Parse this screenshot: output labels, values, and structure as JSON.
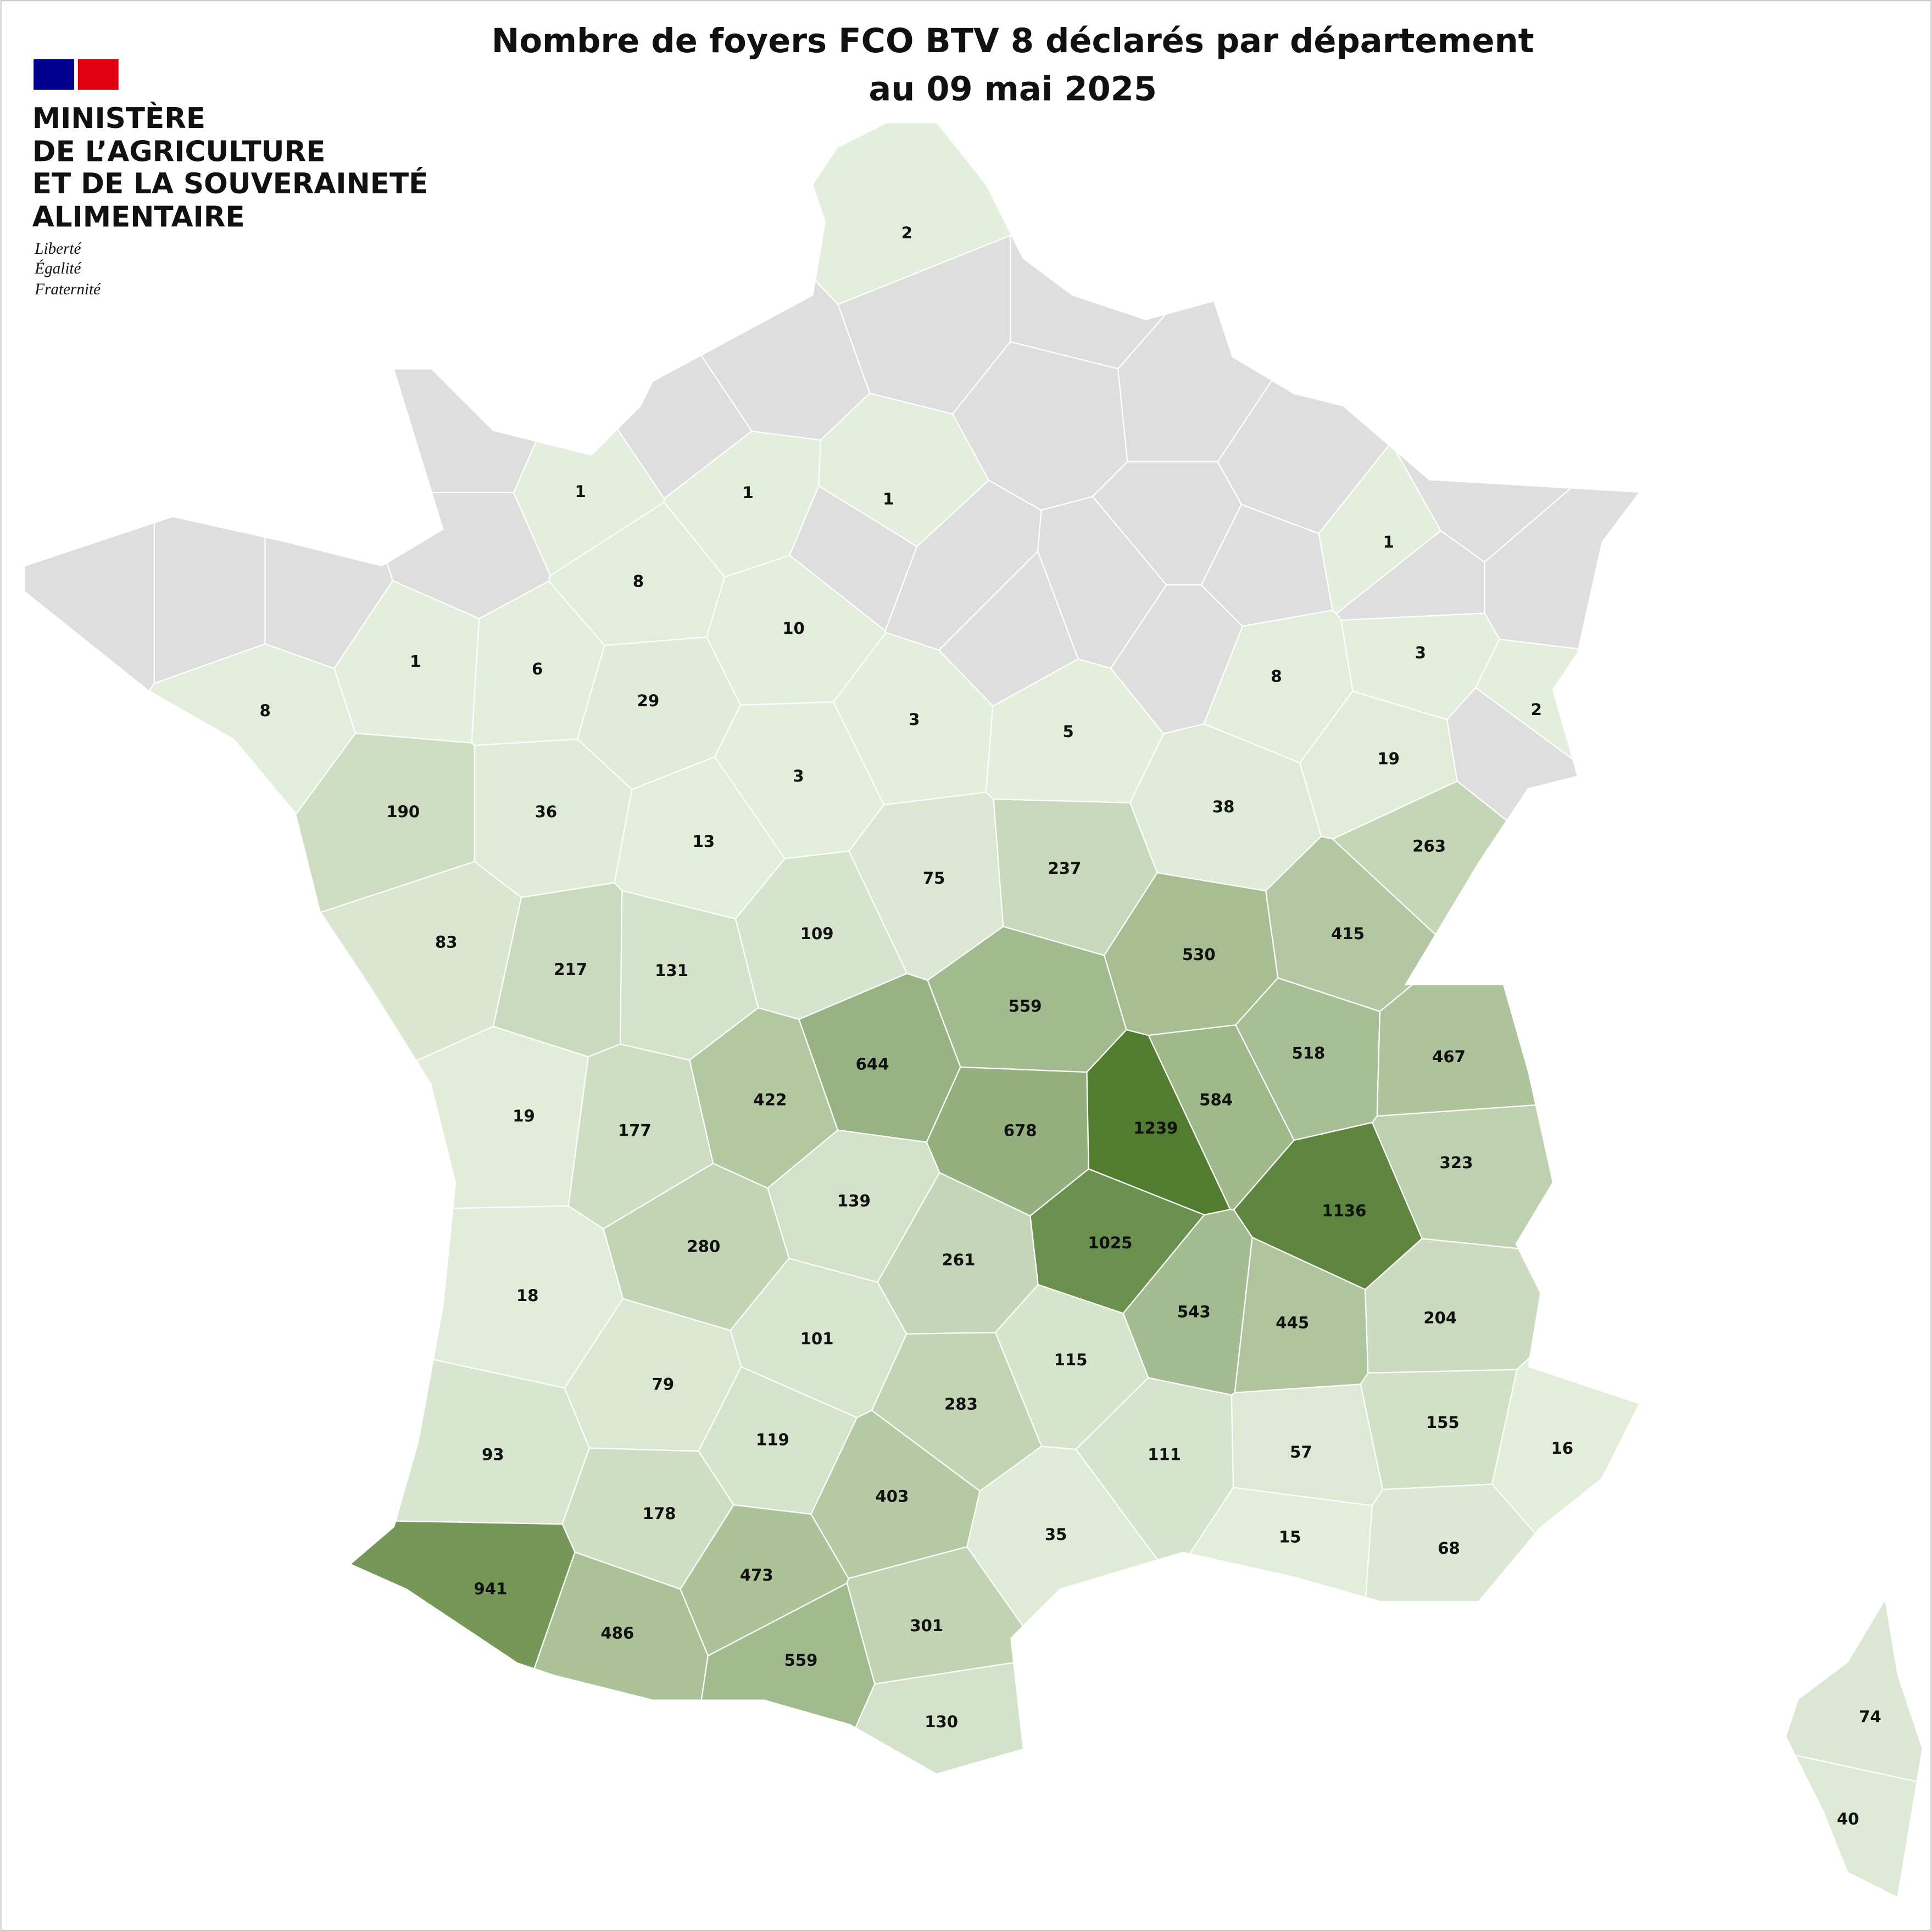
{
  "header": {
    "title": [
      "Nombre de foyers FCO BTV 8 déclarés par département",
      "au 09 mai 2025"
    ]
  },
  "logo": {
    "lines": [
      "MINISTÈRE",
      "DE L’AGRICULTURE",
      "ET DE LA SOUVERAINETÉ",
      "ALIMENTAIRE"
    ],
    "motto": [
      "Liberté",
      "Égalité",
      "Fraternité"
    ]
  },
  "map": {
    "type": "choropleth",
    "color_scale": [
      "#e4eedc",
      "#527d30"
    ],
    "no_data_color": "#dedede",
    "values": [
      2,
      1,
      1,
      1,
      1,
      8,
      10,
      1,
      6,
      3,
      8,
      8,
      29,
      3,
      5,
      2,
      3,
      19,
      190,
      36,
      38,
      13,
      263,
      75,
      237,
      83,
      217,
      131,
      109,
      415,
      530,
      559,
      518,
      467,
      644,
      422,
      584,
      19,
      177,
      678,
      1239,
      323,
      139,
      1136,
      280,
      1025,
      261,
      18,
      543,
      445,
      204,
      101,
      115,
      79,
      283,
      155,
      93,
      119,
      111,
      57,
      16,
      403,
      178,
      35,
      15,
      68,
      473,
      941,
      486,
      301,
      559,
      130,
      74,
      40
    ]
  }
}
